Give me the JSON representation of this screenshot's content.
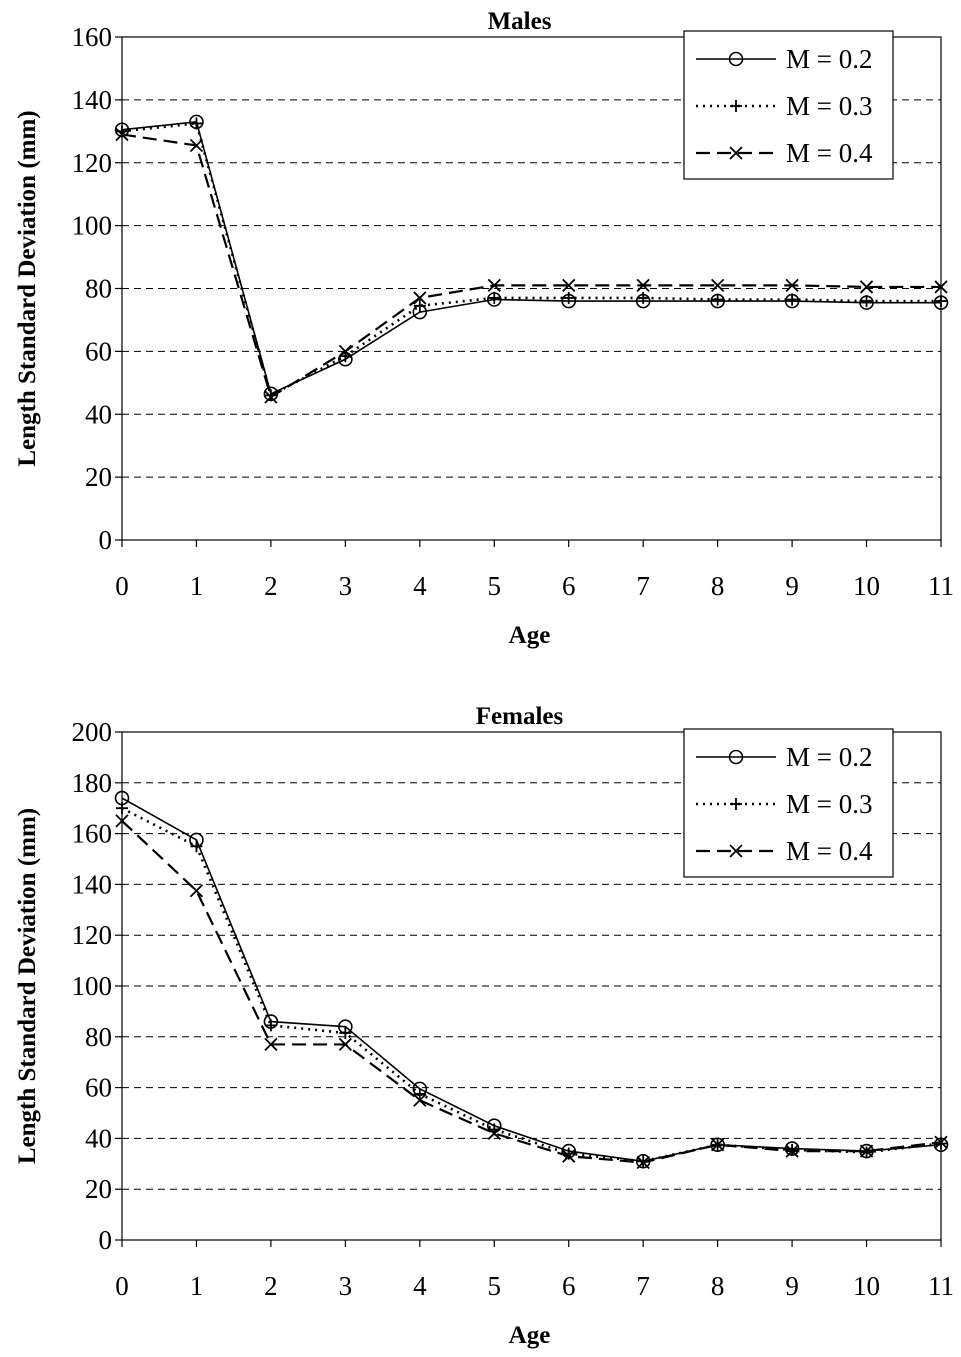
{
  "chart_data": [
    {
      "type": "line",
      "title": "Males",
      "xlabel": "Age",
      "ylabel": "Length Standard Deviation (mm)",
      "x": [
        0,
        1,
        2,
        3,
        4,
        5,
        6,
        7,
        8,
        9,
        10,
        11
      ],
      "xlim": [
        0,
        11
      ],
      "ylim": [
        0,
        160
      ],
      "yticks": [
        0,
        20,
        40,
        60,
        80,
        100,
        120,
        140,
        160
      ],
      "grid": "horizontal dashed",
      "legend_position": "top-right",
      "series": [
        {
          "name": "M = 0.2",
          "style": "solid",
          "marker": "circle",
          "values": [
            130.5,
            133,
            46.5,
            57.5,
            72.5,
            76.5,
            76,
            76,
            76,
            76,
            75.5,
            75.5
          ]
        },
        {
          "name": "M = 0.3",
          "style": "dotted",
          "marker": "plus",
          "values": [
            130,
            132.5,
            46,
            58.5,
            74.5,
            77,
            77,
            77,
            76.5,
            76.5,
            76,
            76
          ]
        },
        {
          "name": "M = 0.4",
          "style": "dashed",
          "marker": "x",
          "values": [
            129,
            125.5,
            45.5,
            60,
            77,
            81,
            81,
            81,
            81,
            81,
            80.5,
            80.5
          ]
        }
      ]
    },
    {
      "type": "line",
      "title": "Females",
      "xlabel": "Age",
      "ylabel": "Length Standard Deviation (mm)",
      "x": [
        0,
        1,
        2,
        3,
        4,
        5,
        6,
        7,
        8,
        9,
        10,
        11
      ],
      "xlim": [
        0,
        11
      ],
      "ylim": [
        0,
        200
      ],
      "yticks": [
        0,
        20,
        40,
        60,
        80,
        100,
        120,
        140,
        160,
        180,
        200
      ],
      "grid": "horizontal dashed",
      "legend_position": "top-right",
      "series": [
        {
          "name": "M = 0.2",
          "style": "solid",
          "marker": "circle",
          "values": [
            174,
            157.5,
            86,
            84,
            59.5,
            45,
            35,
            31,
            37.5,
            36,
            35,
            37.5
          ]
        },
        {
          "name": "M = 0.3",
          "style": "dotted",
          "marker": "plus",
          "values": [
            170,
            155,
            84.5,
            81.5,
            57.5,
            43.5,
            34,
            31,
            37.5,
            35.5,
            34.5,
            38
          ]
        },
        {
          "name": "M = 0.4",
          "style": "dashed",
          "marker": "x",
          "values": [
            165,
            137.5,
            77,
            77,
            55,
            42,
            33,
            30.5,
            37.5,
            35,
            35,
            38.5
          ]
        }
      ]
    }
  ]
}
